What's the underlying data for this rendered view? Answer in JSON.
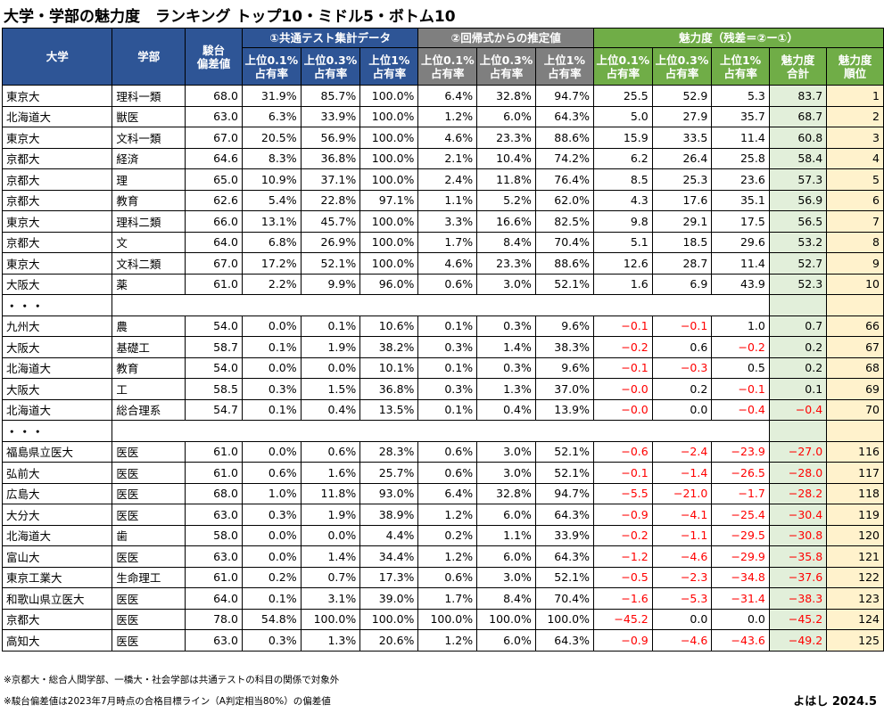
{
  "title": "大学・学部の魅力度　ランキング トップ10・ミドル5・ボトム10",
  "headers": {
    "university": "大学",
    "faculty": "学部",
    "hensachi": "駿台\n偏差値",
    "group1": "①共通テスト集計データ",
    "group2": "②回帰式からの推定値",
    "group3": "魅力度（残差＝②ー①）",
    "top01": "上位0.1%\n占有率",
    "top03": "上位0.3%\n占有率",
    "top1": "上位1%\n占有率",
    "total": "魅力度\n合計",
    "rank": "魅力度\n順位"
  },
  "rows": [
    {
      "u": "東京大",
      "f": "理科一類",
      "h": "68.0",
      "a1": "31.9%",
      "a2": "85.7%",
      "a3": "100.0%",
      "b1": "6.4%",
      "b2": "32.8%",
      "b3": "94.7%",
      "r1": "25.5",
      "r2": "52.9",
      "r3": "5.3",
      "t": "83.7",
      "rank": "1"
    },
    {
      "u": "北海道大",
      "f": "獣医",
      "h": "63.0",
      "a1": "6.3%",
      "a2": "33.9%",
      "a3": "100.0%",
      "b1": "1.2%",
      "b2": "6.0%",
      "b3": "64.3%",
      "r1": "5.0",
      "r2": "27.9",
      "r3": "35.7",
      "t": "68.7",
      "rank": "2"
    },
    {
      "u": "東京大",
      "f": "文科一類",
      "h": "67.0",
      "a1": "20.5%",
      "a2": "56.9%",
      "a3": "100.0%",
      "b1": "4.6%",
      "b2": "23.3%",
      "b3": "88.6%",
      "r1": "15.9",
      "r2": "33.5",
      "r3": "11.4",
      "t": "60.8",
      "rank": "3"
    },
    {
      "u": "京都大",
      "f": "経済",
      "h": "64.6",
      "a1": "8.3%",
      "a2": "36.8%",
      "a3": "100.0%",
      "b1": "2.1%",
      "b2": "10.4%",
      "b3": "74.2%",
      "r1": "6.2",
      "r2": "26.4",
      "r3": "25.8",
      "t": "58.4",
      "rank": "4"
    },
    {
      "u": "京都大",
      "f": "理",
      "h": "65.0",
      "a1": "10.9%",
      "a2": "37.1%",
      "a3": "100.0%",
      "b1": "2.4%",
      "b2": "11.8%",
      "b3": "76.4%",
      "r1": "8.5",
      "r2": "25.3",
      "r3": "23.6",
      "t": "57.3",
      "rank": "5"
    },
    {
      "u": "京都大",
      "f": "教育",
      "h": "62.6",
      "a1": "5.4%",
      "a2": "22.8%",
      "a3": "97.1%",
      "b1": "1.1%",
      "b2": "5.2%",
      "b3": "62.0%",
      "r1": "4.3",
      "r2": "17.6",
      "r3": "35.1",
      "t": "56.9",
      "rank": "6"
    },
    {
      "u": "東京大",
      "f": "理科二類",
      "h": "66.0",
      "a1": "13.1%",
      "a2": "45.7%",
      "a3": "100.0%",
      "b1": "3.3%",
      "b2": "16.6%",
      "b3": "82.5%",
      "r1": "9.8",
      "r2": "29.1",
      "r3": "17.5",
      "t": "56.5",
      "rank": "7"
    },
    {
      "u": "京都大",
      "f": "文",
      "h": "64.0",
      "a1": "6.8%",
      "a2": "26.9%",
      "a3": "100.0%",
      "b1": "1.7%",
      "b2": "8.4%",
      "b3": "70.4%",
      "r1": "5.1",
      "r2": "18.5",
      "r3": "29.6",
      "t": "53.2",
      "rank": "8"
    },
    {
      "u": "東京大",
      "f": "文科二類",
      "h": "67.0",
      "a1": "17.2%",
      "a2": "52.1%",
      "a3": "100.0%",
      "b1": "4.6%",
      "b2": "23.3%",
      "b3": "88.6%",
      "r1": "12.6",
      "r2": "28.7",
      "r3": "11.4",
      "t": "52.7",
      "rank": "9"
    },
    {
      "u": "大阪大",
      "f": "薬",
      "h": "61.0",
      "a1": "2.2%",
      "a2": "9.9%",
      "a3": "96.0%",
      "b1": "0.6%",
      "b2": "3.0%",
      "b3": "52.1%",
      "r1": "1.6",
      "r2": "6.9",
      "r3": "43.9",
      "t": "52.3",
      "rank": "10"
    },
    {
      "gap": "・・・"
    },
    {
      "u": "九州大",
      "f": "農",
      "h": "54.0",
      "a1": "0.0%",
      "a2": "0.1%",
      "a3": "10.6%",
      "b1": "0.1%",
      "b2": "0.3%",
      "b3": "9.6%",
      "r1": "−0.1",
      "r2": "−0.1",
      "r3": "1.0",
      "t": "0.7",
      "rank": "66"
    },
    {
      "u": "大阪大",
      "f": "基礎工",
      "h": "58.7",
      "a1": "0.1%",
      "a2": "1.9%",
      "a3": "38.2%",
      "b1": "0.3%",
      "b2": "1.4%",
      "b3": "38.3%",
      "r1": "−0.2",
      "r2": "0.6",
      "r3": "−0.2",
      "t": "0.2",
      "rank": "67"
    },
    {
      "u": "北海道大",
      "f": "教育",
      "h": "54.0",
      "a1": "0.0%",
      "a2": "0.0%",
      "a3": "10.1%",
      "b1": "0.1%",
      "b2": "0.3%",
      "b3": "9.6%",
      "r1": "−0.1",
      "r2": "−0.3",
      "r3": "0.5",
      "t": "0.2",
      "rank": "68"
    },
    {
      "u": "大阪大",
      "f": "工",
      "h": "58.5",
      "a1": "0.3%",
      "a2": "1.5%",
      "a3": "36.8%",
      "b1": "0.3%",
      "b2": "1.3%",
      "b3": "37.0%",
      "r1": "−0.0",
      "r2": "0.2",
      "r3": "−0.1",
      "t": "0.1",
      "rank": "69"
    },
    {
      "u": "北海道大",
      "f": "総合理系",
      "h": "54.7",
      "a1": "0.1%",
      "a2": "0.4%",
      "a3": "13.5%",
      "b1": "0.1%",
      "b2": "0.4%",
      "b3": "13.9%",
      "r1": "−0.0",
      "r2": "0.0",
      "r3": "−0.4",
      "t": "−0.4",
      "rank": "70"
    },
    {
      "gap": "・・・"
    },
    {
      "u": "福島県立医大",
      "f": "医医",
      "h": "61.0",
      "a1": "0.0%",
      "a2": "0.6%",
      "a3": "28.3%",
      "b1": "0.6%",
      "b2": "3.0%",
      "b3": "52.1%",
      "r1": "−0.6",
      "r2": "−2.4",
      "r3": "−23.9",
      "t": "−27.0",
      "rank": "116"
    },
    {
      "u": "弘前大",
      "f": "医医",
      "h": "61.0",
      "a1": "0.6%",
      "a2": "1.6%",
      "a3": "25.7%",
      "b1": "0.6%",
      "b2": "3.0%",
      "b3": "52.1%",
      "r1": "−0.1",
      "r2": "−1.4",
      "r3": "−26.5",
      "t": "−28.0",
      "rank": "117"
    },
    {
      "u": "広島大",
      "f": "医医",
      "h": "68.0",
      "a1": "1.0%",
      "a2": "11.8%",
      "a3": "93.0%",
      "b1": "6.4%",
      "b2": "32.8%",
      "b3": "94.7%",
      "r1": "−5.5",
      "r2": "−21.0",
      "r3": "−1.7",
      "t": "−28.2",
      "rank": "118"
    },
    {
      "u": "大分大",
      "f": "医医",
      "h": "63.0",
      "a1": "0.3%",
      "a2": "1.9%",
      "a3": "38.9%",
      "b1": "1.2%",
      "b2": "6.0%",
      "b3": "64.3%",
      "r1": "−0.9",
      "r2": "−4.1",
      "r3": "−25.4",
      "t": "−30.4",
      "rank": "119"
    },
    {
      "u": "北海道大",
      "f": "歯",
      "h": "58.0",
      "a1": "0.0%",
      "a2": "0.0%",
      "a3": "4.4%",
      "b1": "0.2%",
      "b2": "1.1%",
      "b3": "33.9%",
      "r1": "−0.2",
      "r2": "−1.1",
      "r3": "−29.5",
      "t": "−30.8",
      "rank": "120"
    },
    {
      "u": "富山大",
      "f": "医医",
      "h": "63.0",
      "a1": "0.0%",
      "a2": "1.4%",
      "a3": "34.4%",
      "b1": "1.2%",
      "b2": "6.0%",
      "b3": "64.3%",
      "r1": "−1.2",
      "r2": "−4.6",
      "r3": "−29.9",
      "t": "−35.8",
      "rank": "121"
    },
    {
      "u": "東京工業大",
      "f": "生命理工",
      "h": "61.0",
      "a1": "0.2%",
      "a2": "0.7%",
      "a3": "17.3%",
      "b1": "0.6%",
      "b2": "3.0%",
      "b3": "52.1%",
      "r1": "−0.5",
      "r2": "−2.3",
      "r3": "−34.8",
      "t": "−37.6",
      "rank": "122"
    },
    {
      "u": "和歌山県立医大",
      "f": "医医",
      "h": "64.0",
      "a1": "0.1%",
      "a2": "3.1%",
      "a3": "39.0%",
      "b1": "1.7%",
      "b2": "8.4%",
      "b3": "70.4%",
      "r1": "−1.6",
      "r2": "−5.3",
      "r3": "−31.4",
      "t": "−38.3",
      "rank": "123"
    },
    {
      "u": "京都大",
      "f": "医医",
      "h": "78.0",
      "a1": "54.8%",
      "a2": "100.0%",
      "a3": "100.0%",
      "b1": "100.0%",
      "b2": "100.0%",
      "b3": "100.0%",
      "r1": "−45.2",
      "r2": "0.0",
      "r3": "0.0",
      "t": "−45.2",
      "rank": "124"
    },
    {
      "u": "高知大",
      "f": "医医",
      "h": "63.0",
      "a1": "0.3%",
      "a2": "1.3%",
      "a3": "20.6%",
      "b1": "1.2%",
      "b2": "6.0%",
      "b3": "64.3%",
      "r1": "−0.9",
      "r2": "−4.6",
      "r3": "−43.6",
      "t": "−49.2",
      "rank": "125"
    }
  ],
  "notes": [
    "※京都大・総合人間学部、一橋大・社会学部は共通テストの科目の関係で対象外",
    "※駿台偏差値は2023年7月時点の合格目標ライン（A判定相当80%）の偏差値"
  ],
  "signature": "よはし 2024.5"
}
